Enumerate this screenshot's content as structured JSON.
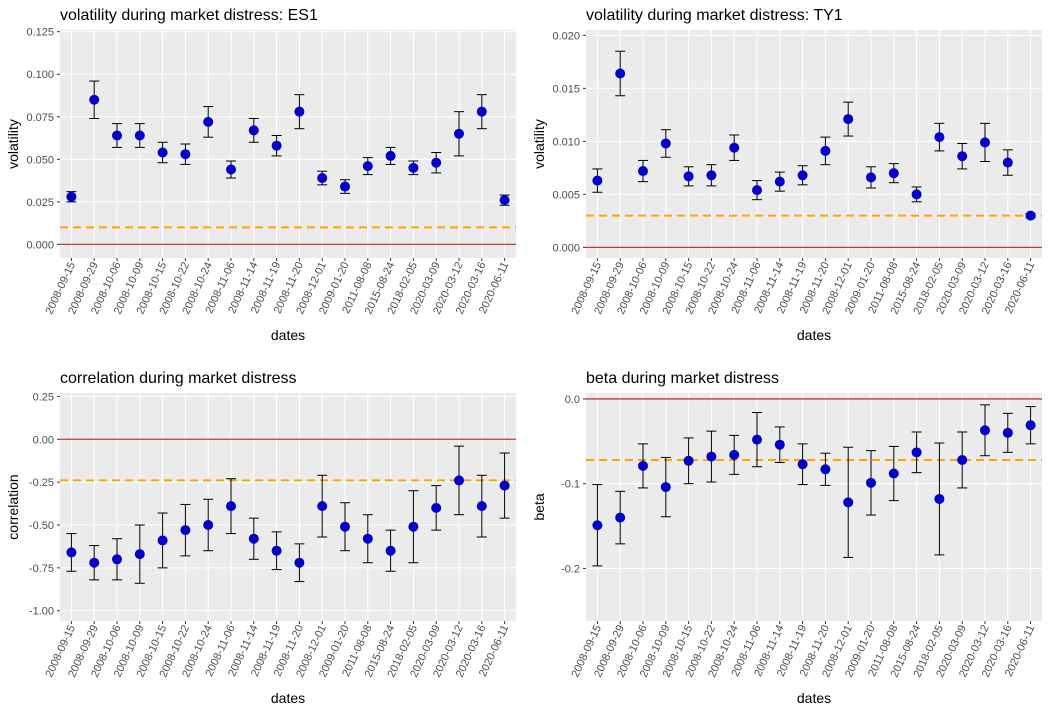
{
  "chart_data": [
    {
      "type": "scatter",
      "title": "volatility during market distress: ES1",
      "x_label": "dates",
      "y_label": "volatility",
      "color": "#0000c8",
      "categories": [
        "2008-09-15",
        "2008-09-29",
        "2008-10-06",
        "2008-10-09",
        "2008-10-15",
        "2008-10-22",
        "2008-10-24",
        "2008-11-06",
        "2008-11-14",
        "2008-11-19",
        "2008-11-20",
        "2008-12-01",
        "2009-01-20",
        "2011-08-08",
        "2015-08-24",
        "2018-02-05",
        "2020-03-09",
        "2020-03-12",
        "2020-03-16",
        "2020-06-11"
      ],
      "values": [
        0.028,
        0.085,
        0.064,
        0.064,
        0.054,
        0.053,
        0.072,
        0.044,
        0.067,
        0.058,
        0.078,
        0.039,
        0.034,
        0.046,
        0.052,
        0.045,
        0.048,
        0.065,
        0.078,
        0.026
      ],
      "errors": [
        0.003,
        0.011,
        0.007,
        0.007,
        0.006,
        0.006,
        0.009,
        0.005,
        0.007,
        0.006,
        0.01,
        0.004,
        0.004,
        0.005,
        0.005,
        0.004,
        0.006,
        0.013,
        0.01,
        0.003
      ],
      "ylim": [
        -0.008,
        0.126
      ],
      "yticks": [
        {
          "value": 0,
          "label": "0.000"
        },
        0.025,
        {
          "value": 0.05,
          "label": "0.050"
        },
        0.075,
        {
          "value": 0.1,
          "label": "0.100"
        },
        0.125
      ],
      "hlines": [
        {
          "value": 0,
          "color": "#b2413c",
          "dashed": false
        },
        {
          "value": 0.01,
          "color": "#ffa500",
          "dashed": true
        }
      ]
    },
    {
      "type": "scatter",
      "title": "volatility during market distress: TY1",
      "x_label": "dates",
      "y_label": "volatility",
      "color": "#0000c8",
      "categories": [
        "2008-09-15",
        "2008-09-29",
        "2008-10-06",
        "2008-10-09",
        "2008-10-15",
        "2008-10-22",
        "2008-10-24",
        "2008-11-06",
        "2008-11-14",
        "2008-11-19",
        "2008-11-20",
        "2008-12-01",
        "2009-01-20",
        "2011-08-08",
        "2015-08-24",
        "2018-02-05",
        "2020-03-09",
        "2020-03-12",
        "2020-03-16",
        "2020-06-11"
      ],
      "values": [
        0.0063,
        0.0164,
        0.0072,
        0.0098,
        0.0067,
        0.0068,
        0.0094,
        0.0054,
        0.0062,
        0.0068,
        0.0091,
        0.0121,
        0.0066,
        0.007,
        0.005,
        0.0104,
        0.0086,
        0.0099,
        0.008,
        0.003
      ],
      "errors": [
        0.0011,
        0.0021,
        0.001,
        0.0013,
        0.0009,
        0.001,
        0.0012,
        0.0009,
        0.0009,
        0.0009,
        0.0013,
        0.0016,
        0.001,
        0.0009,
        0.0007,
        0.0013,
        0.0012,
        0.0018,
        0.0012,
        0.0002
      ],
      "ylim": [
        -0.001,
        0.0205
      ],
      "yticks": [
        {
          "value": 0,
          "label": "0.000"
        },
        0.005,
        {
          "value": 0.01,
          "label": "0.010"
        },
        0.015,
        {
          "value": 0.02,
          "label": "0.020"
        }
      ],
      "hlines": [
        {
          "value": 0,
          "color": "#b2413c",
          "dashed": false
        },
        {
          "value": 0.003,
          "color": "#ffa500",
          "dashed": true
        }
      ]
    },
    {
      "type": "scatter",
      "title": "correlation during market distress",
      "x_label": "dates",
      "y_label": "correlation",
      "color": "#0000c8",
      "categories": [
        "2008-09-15",
        "2008-09-29",
        "2008-10-06",
        "2008-10-09",
        "2008-10-15",
        "2008-10-22",
        "2008-10-24",
        "2008-11-06",
        "2008-11-14",
        "2008-11-19",
        "2008-11-20",
        "2008-12-01",
        "2009-01-20",
        "2011-08-08",
        "2015-08-24",
        "2018-02-05",
        "2020-03-09",
        "2020-03-12",
        "2020-03-16",
        "2020-06-11"
      ],
      "values": [
        -0.66,
        -0.72,
        -0.7,
        -0.67,
        -0.59,
        -0.53,
        -0.5,
        -0.39,
        -0.58,
        -0.65,
        -0.72,
        -0.39,
        -0.51,
        -0.58,
        -0.65,
        -0.51,
        -0.4,
        -0.24,
        -0.39,
        -0.27
      ],
      "errors": [
        0.11,
        0.1,
        0.12,
        0.17,
        0.16,
        0.15,
        0.15,
        0.16,
        0.12,
        0.11,
        0.11,
        0.18,
        0.14,
        0.14,
        0.12,
        0.21,
        0.13,
        0.2,
        0.18,
        0.19
      ],
      "ylim": [
        -1.06,
        0.27
      ],
      "yticks": [
        {
          "value": -1,
          "label": "-1.00"
        },
        -0.75,
        {
          "value": -0.5,
          "label": "-0.50"
        },
        -0.25,
        {
          "value": 0,
          "label": "0.00"
        },
        0.25
      ],
      "hlines": [
        {
          "value": 0,
          "color": "#b2413c",
          "dashed": false
        },
        {
          "value": -0.24,
          "color": "#ffa500",
          "dashed": true
        }
      ]
    },
    {
      "type": "scatter",
      "title": "beta during market distress",
      "x_label": "dates",
      "y_label": "beta",
      "color": "#0000c8",
      "categories": [
        "2008-09-15",
        "2008-09-29",
        "2008-10-06",
        "2008-10-09",
        "2008-10-15",
        "2008-10-22",
        "2008-10-24",
        "2008-11-06",
        "2008-11-14",
        "2008-11-19",
        "2008-11-20",
        "2008-12-01",
        "2009-01-20",
        "2011-08-08",
        "2015-08-24",
        "2018-02-05",
        "2020-03-09",
        "2020-03-12",
        "2020-03-16",
        "2020-06-11"
      ],
      "values": [
        -0.149,
        -0.14,
        -0.079,
        -0.104,
        -0.073,
        -0.068,
        -0.066,
        -0.048,
        -0.054,
        -0.077,
        -0.083,
        -0.122,
        -0.099,
        -0.088,
        -0.063,
        -0.118,
        -0.072,
        -0.037,
        -0.04,
        -0.031
      ],
      "errors": [
        0.048,
        0.031,
        0.026,
        0.035,
        0.027,
        0.03,
        0.023,
        0.032,
        0.021,
        0.024,
        0.019,
        0.065,
        0.038,
        0.032,
        0.024,
        0.066,
        0.033,
        0.03,
        0.023,
        0.022
      ],
      "ylim": [
        -0.262,
        0.007
      ],
      "yticks": [
        -0.2,
        -0.1,
        {
          "value": 0,
          "label": "0.0"
        }
      ],
      "hlines": [
        {
          "value": 0,
          "color": "#b2413c",
          "dashed": false
        },
        {
          "value": -0.072,
          "color": "#ffa500",
          "dashed": true
        }
      ]
    }
  ]
}
